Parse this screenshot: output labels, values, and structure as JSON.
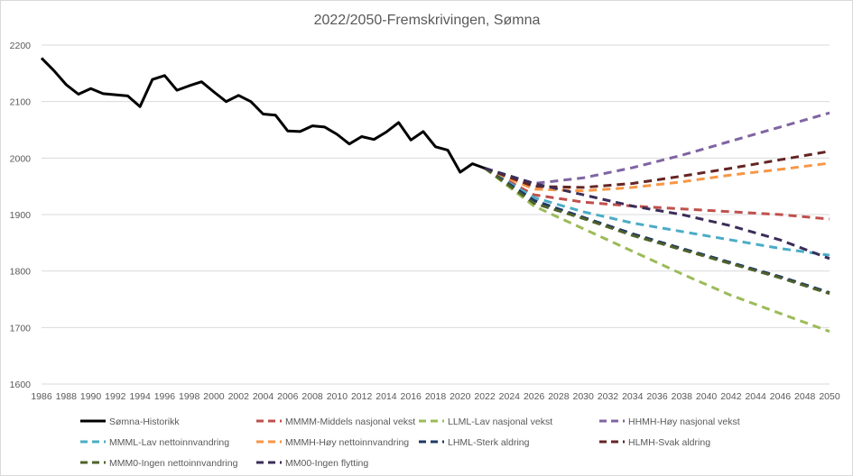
{
  "chart_data": {
    "type": "line",
    "title": "2022/2050-Fremskrivingen, Sømna",
    "xlabel": "",
    "ylabel": "",
    "xlim": [
      1986,
      2050
    ],
    "ylim": [
      1600,
      2200
    ],
    "yticks": [
      1600,
      1700,
      1800,
      1900,
      2000,
      2100,
      2200
    ],
    "xticks": [
      1986,
      1988,
      1990,
      1992,
      1994,
      1996,
      1998,
      2000,
      2002,
      2004,
      2006,
      2008,
      2010,
      2012,
      2014,
      2016,
      2018,
      2020,
      2022,
      2024,
      2026,
      2028,
      2030,
      2032,
      2034,
      2036,
      2038,
      2040,
      2042,
      2044,
      2046,
      2048,
      2050
    ],
    "grid": "horizontal",
    "legend_position": "bottom",
    "series": [
      {
        "name": "Sømna-Historikk",
        "color": "#000000",
        "dashed": false,
        "x": [
          1986,
          1987,
          1988,
          1989,
          1990,
          1991,
          1992,
          1993,
          1994,
          1995,
          1996,
          1997,
          1998,
          1999,
          2000,
          2001,
          2002,
          2003,
          2004,
          2005,
          2006,
          2007,
          2008,
          2009,
          2010,
          2011,
          2012,
          2013,
          2014,
          2015,
          2016,
          2017,
          2018,
          2019,
          2020,
          2021,
          2022
        ],
        "values": [
          2177,
          2155,
          2130,
          2113,
          2123,
          2114,
          2112,
          2110,
          2091,
          2139,
          2146,
          2120,
          2128,
          2135,
          2117,
          2100,
          2111,
          2100,
          2078,
          2076,
          2048,
          2047,
          2057,
          2055,
          2042,
          2025,
          2038,
          2033,
          2046,
          2063,
          2032,
          2047,
          2020,
          2014,
          1975,
          1990,
          1982
        ]
      },
      {
        "name": "MMMM-Middels nasjonal vekst",
        "color": "#c0504d",
        "dashed": true,
        "x": [
          2022,
          2026,
          2030,
          2034,
          2038,
          2042,
          2046,
          2050
        ],
        "values": [
          1982,
          1935,
          1922,
          1915,
          1910,
          1905,
          1900,
          1892
        ]
      },
      {
        "name": "LLML-Lav nasjonal vekst",
        "color": "#9bbb59",
        "dashed": true,
        "x": [
          2022,
          2026,
          2030,
          2034,
          2038,
          2042,
          2046,
          2050
        ],
        "values": [
          1982,
          1915,
          1875,
          1835,
          1795,
          1757,
          1725,
          1693
        ]
      },
      {
        "name": "HHMH-Høy nasjonal vekst",
        "color": "#8064a2",
        "dashed": true,
        "x": [
          2022,
          2026,
          2030,
          2034,
          2038,
          2042,
          2046,
          2050
        ],
        "values": [
          1982,
          1955,
          1965,
          1983,
          2005,
          2030,
          2055,
          2080
        ]
      },
      {
        "name": "MMML-Lav nettoinnvandring",
        "color": "#4bacc6",
        "dashed": true,
        "x": [
          2022,
          2026,
          2030,
          2034,
          2038,
          2042,
          2046,
          2050
        ],
        "values": [
          1982,
          1930,
          1905,
          1885,
          1870,
          1855,
          1840,
          1828
        ]
      },
      {
        "name": "MMMH-Høy nettoinnvandring",
        "color": "#f79646",
        "dashed": true,
        "x": [
          2022,
          2026,
          2030,
          2034,
          2038,
          2042,
          2046,
          2050
        ],
        "values": [
          1982,
          1945,
          1942,
          1948,
          1958,
          1970,
          1980,
          1991
        ]
      },
      {
        "name": "LHML-Sterk aldring",
        "color": "#1f3864",
        "dashed": true,
        "x": [
          2022,
          2026,
          2030,
          2034,
          2038,
          2042,
          2046,
          2050
        ],
        "values": [
          1982,
          1925,
          1895,
          1866,
          1840,
          1815,
          1790,
          1762
        ]
      },
      {
        "name": "HLMH-Svak aldring",
        "color": "#632523",
        "dashed": true,
        "x": [
          2022,
          2026,
          2030,
          2034,
          2038,
          2042,
          2046,
          2050
        ],
        "values": [
          1982,
          1950,
          1948,
          1955,
          1968,
          1982,
          1997,
          2012
        ]
      },
      {
        "name": "MMM0-Ingen nettoinnvandring",
        "color": "#4f6228",
        "dashed": true,
        "x": [
          2022,
          2026,
          2030,
          2034,
          2038,
          2042,
          2046,
          2050
        ],
        "values": [
          1982,
          1920,
          1893,
          1863,
          1838,
          1813,
          1788,
          1760
        ]
      },
      {
        "name": "MM00-Ingen flytting",
        "color": "#3b2d58",
        "dashed": true,
        "x": [
          2022,
          2026,
          2030,
          2034,
          2038,
          2042,
          2046,
          2050
        ],
        "values": [
          1982,
          1955,
          1935,
          1915,
          1900,
          1880,
          1855,
          1822
        ]
      }
    ]
  }
}
